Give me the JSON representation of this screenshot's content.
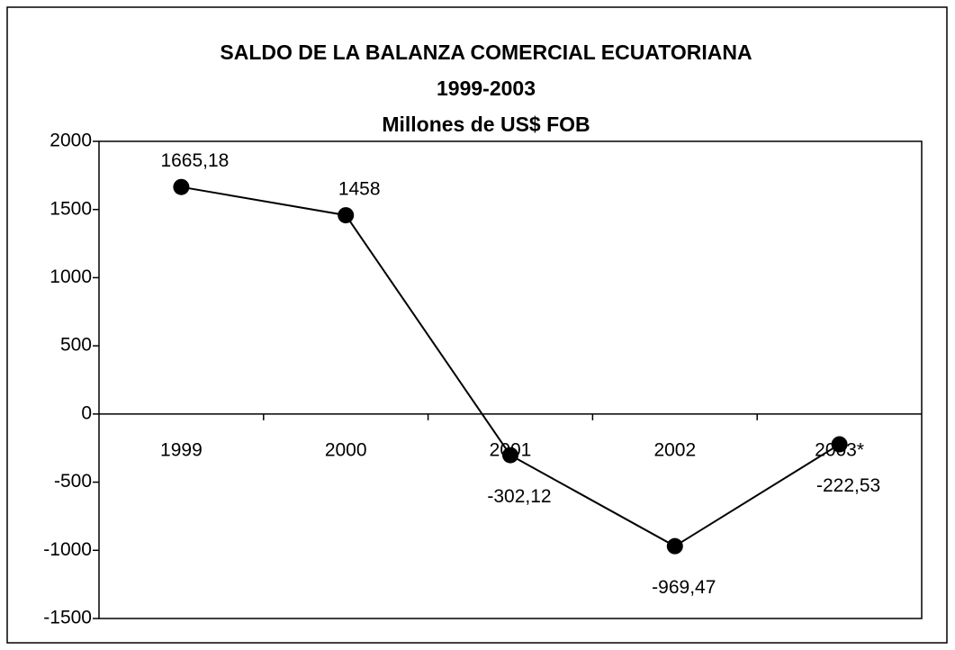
{
  "chart_data": {
    "type": "line",
    "title": "SALDO DE LA BALANZA COMERCIAL ECUATORIANA",
    "subtitle": "1999-2003",
    "units": "Millones de US$ FOB",
    "categories": [
      "1999",
      "2000",
      "2001",
      "2002",
      "2003*"
    ],
    "values": [
      1665.18,
      1458,
      -302.12,
      -969.47,
      -222.53
    ],
    "value_labels": [
      "1665,18",
      "1458",
      "-302,12",
      "-969,47",
      "-222,53"
    ],
    "color": "#000000",
    "ylim": [
      -1500,
      2000
    ],
    "yticks": [
      -1500,
      -1000,
      -500,
      0,
      500,
      1000,
      1500,
      2000
    ],
    "grid": false
  }
}
